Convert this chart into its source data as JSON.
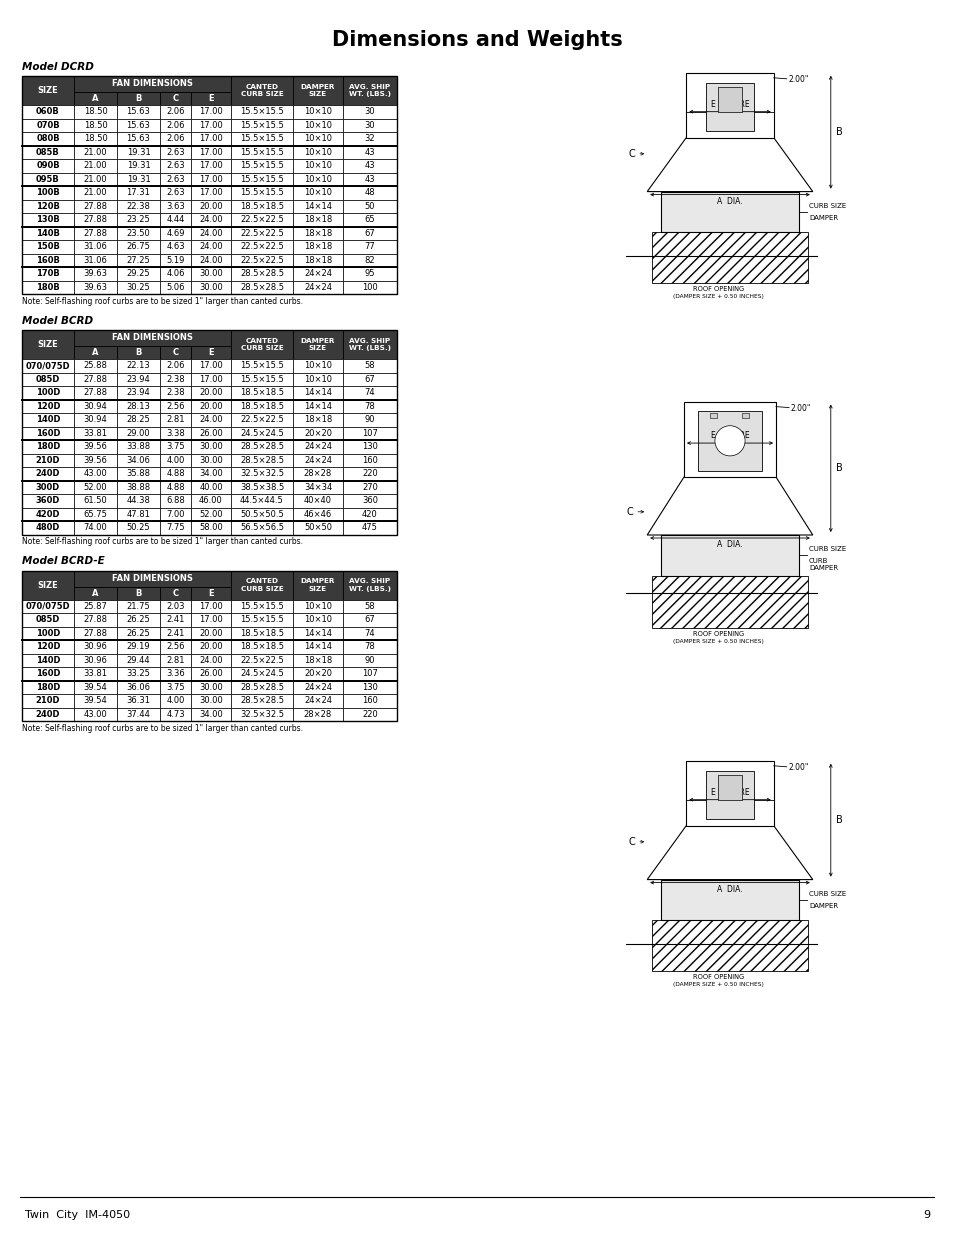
{
  "title": "Dimensions and Weights",
  "page_footer": "Twin  City  IM-4050",
  "page_number": "9",
  "dcrd": {
    "model_label": "Model DCRD",
    "rows": [
      [
        "060B",
        "18.50",
        "15.63",
        "2.06",
        "17.00",
        "15.5×15.5",
        "10×10",
        "30"
      ],
      [
        "070B",
        "18.50",
        "15.63",
        "2.06",
        "17.00",
        "15.5×15.5",
        "10×10",
        "30"
      ],
      [
        "080B",
        "18.50",
        "15.63",
        "2.06",
        "17.00",
        "15.5×15.5",
        "10×10",
        "32"
      ],
      [
        "085B",
        "21.00",
        "19.31",
        "2.63",
        "17.00",
        "15.5×15.5",
        "10×10",
        "43"
      ],
      [
        "090B",
        "21.00",
        "19.31",
        "2.63",
        "17.00",
        "15.5×15.5",
        "10×10",
        "43"
      ],
      [
        "095B",
        "21.00",
        "19.31",
        "2.63",
        "17.00",
        "15.5×15.5",
        "10×10",
        "43"
      ],
      [
        "100B",
        "21.00",
        "17.31",
        "2.63",
        "17.00",
        "15.5×15.5",
        "10×10",
        "48"
      ],
      [
        "120B",
        "27.88",
        "22.38",
        "3.63",
        "20.00",
        "18.5×18.5",
        "14×14",
        "50"
      ],
      [
        "130B",
        "27.88",
        "23.25",
        "4.44",
        "24.00",
        "22.5×22.5",
        "18×18",
        "65"
      ],
      [
        "140B",
        "27.88",
        "23.50",
        "4.69",
        "24.00",
        "22.5×22.5",
        "18×18",
        "67"
      ],
      [
        "150B",
        "31.06",
        "26.75",
        "4.63",
        "24.00",
        "22.5×22.5",
        "18×18",
        "77"
      ],
      [
        "160B",
        "31.06",
        "27.25",
        "5.19",
        "24.00",
        "22.5×22.5",
        "18×18",
        "82"
      ],
      [
        "170B",
        "39.63",
        "29.25",
        "4.06",
        "30.00",
        "28.5×28.5",
        "24×24",
        "95"
      ],
      [
        "180B",
        "39.63",
        "30.25",
        "5.06",
        "30.00",
        "28.5×28.5",
        "24×24",
        "100"
      ]
    ],
    "group_separators": [
      3,
      6,
      9,
      12
    ],
    "note": "Note: Self-flashing roof curbs are to be sized 1\" larger than canted curbs."
  },
  "bcrd": {
    "model_label": "Model BCRD",
    "rows": [
      [
        "070/075D",
        "25.88",
        "22.13",
        "2.06",
        "17.00",
        "15.5×15.5",
        "10×10",
        "58"
      ],
      [
        "085D",
        "27.88",
        "23.94",
        "2.38",
        "17.00",
        "15.5×15.5",
        "10×10",
        "67"
      ],
      [
        "100D",
        "27.88",
        "23.94",
        "2.38",
        "20.00",
        "18.5×18.5",
        "14×14",
        "74"
      ],
      [
        "120D",
        "30.94",
        "28.13",
        "2.56",
        "20.00",
        "18.5×18.5",
        "14×14",
        "78"
      ],
      [
        "140D",
        "30.94",
        "28.25",
        "2.81",
        "24.00",
        "22.5×22.5",
        "18×18",
        "90"
      ],
      [
        "160D",
        "33.81",
        "29.00",
        "3.38",
        "26.00",
        "24.5×24.5",
        "20×20",
        "107"
      ],
      [
        "180D",
        "39.56",
        "33.88",
        "3.75",
        "30.00",
        "28.5×28.5",
        "24×24",
        "130"
      ],
      [
        "210D",
        "39.56",
        "34.06",
        "4.00",
        "30.00",
        "28.5×28.5",
        "24×24",
        "160"
      ],
      [
        "240D",
        "43.00",
        "35.88",
        "4.88",
        "34.00",
        "32.5×32.5",
        "28×28",
        "220"
      ],
      [
        "300D",
        "52.00",
        "38.88",
        "4.88",
        "40.00",
        "38.5×38.5",
        "34×34",
        "270"
      ],
      [
        "360D",
        "61.50",
        "44.38",
        "6.88",
        "46.00",
        "44.5×44.5",
        "40×40",
        "360"
      ],
      [
        "420D",
        "65.75",
        "47.81",
        "7.00",
        "52.00",
        "50.5×50.5",
        "46×46",
        "420"
      ],
      [
        "480D",
        "74.00",
        "50.25",
        "7.75",
        "58.00",
        "56.5×56.5",
        "50×50",
        "475"
      ]
    ],
    "group_separators": [
      3,
      6,
      9,
      12
    ],
    "note": "Note: Self-flashing roof curbs are to be sized 1\" larger than canted curbs."
  },
  "bcrd_e": {
    "model_label": "Model BCRD-E",
    "rows": [
      [
        "070/075D",
        "25.87",
        "21.75",
        "2.03",
        "17.00",
        "15.5×15.5",
        "10×10",
        "58"
      ],
      [
        "085D",
        "27.88",
        "26.25",
        "2.41",
        "17.00",
        "15.5×15.5",
        "10×10",
        "67"
      ],
      [
        "100D",
        "27.88",
        "26.25",
        "2.41",
        "20.00",
        "18.5×18.5",
        "14×14",
        "74"
      ],
      [
        "120D",
        "30.96",
        "29.19",
        "2.56",
        "20.00",
        "18.5×18.5",
        "14×14",
        "78"
      ],
      [
        "140D",
        "30.96",
        "29.44",
        "2.81",
        "24.00",
        "22.5×22.5",
        "18×18",
        "90"
      ],
      [
        "160D",
        "33.81",
        "33.25",
        "3.36",
        "26.00",
        "24.5×24.5",
        "20×20",
        "107"
      ],
      [
        "180D",
        "39.54",
        "36.06",
        "3.75",
        "30.00",
        "28.5×28.5",
        "24×24",
        "130"
      ],
      [
        "210D",
        "39.54",
        "36.31",
        "4.00",
        "30.00",
        "28.5×28.5",
        "24×24",
        "160"
      ],
      [
        "240D",
        "43.00",
        "37.44",
        "4.73",
        "34.00",
        "32.5×32.5",
        "28×28",
        "220"
      ]
    ],
    "group_separators": [
      3,
      6,
      9
    ],
    "note": "Note: Self-flashing roof curbs are to be sized 1\" larger than canted curbs."
  },
  "header_bg": "#3a3a3a",
  "header_fg": "#ffffff"
}
